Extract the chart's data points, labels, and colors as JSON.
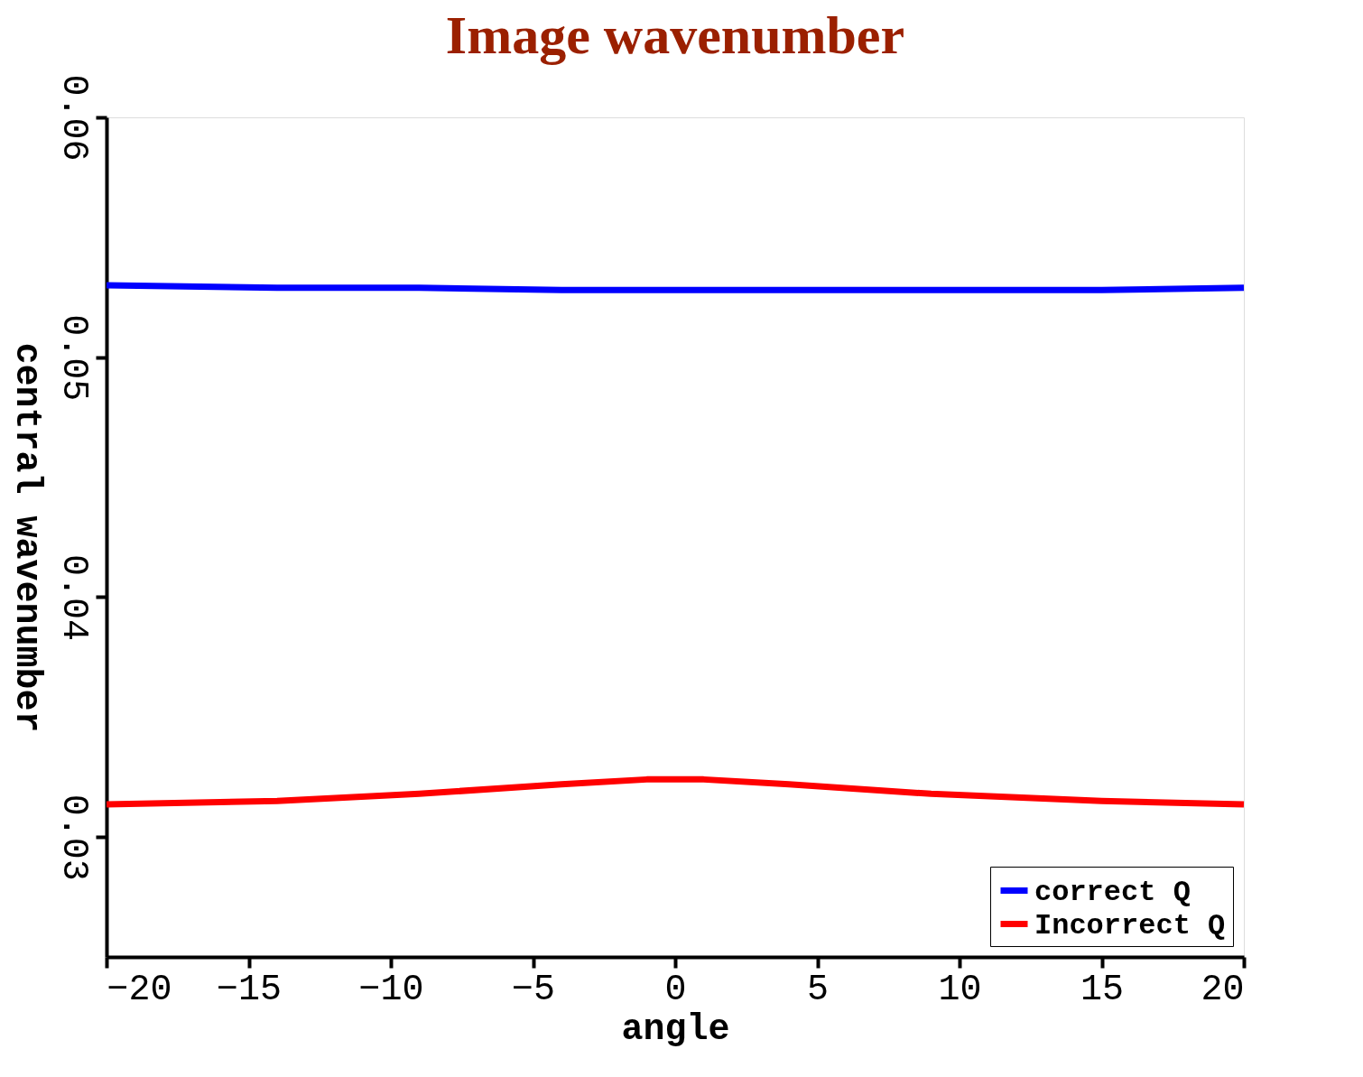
{
  "chart_data": {
    "type": "line",
    "title": "Image wavenumber",
    "xlabel": "angle",
    "ylabel": "central wavenumber",
    "xlim": [
      -20,
      20
    ],
    "xticks": [
      -20,
      -15,
      -10,
      -5,
      0,
      5,
      10,
      15,
      20
    ],
    "ylim": [
      0.025,
      0.06
    ],
    "yticks": [
      0.03,
      0.04,
      0.05,
      0.06
    ],
    "grid": false,
    "legend": "bottom right",
    "line_style": "solid",
    "series": [
      {
        "name": "correct Q",
        "color": "#0000ff",
        "x": [
          -20,
          -14,
          -9,
          -4,
          -1,
          1,
          4,
          9,
          15,
          20
        ],
        "values": [
          0.053,
          0.0529,
          0.0529,
          0.0528,
          0.0528,
          0.0528,
          0.0528,
          0.0528,
          0.0528,
          0.0529
        ]
      },
      {
        "name": "Incorrect Q",
        "color": "#ff0000",
        "x": [
          -20,
          -14,
          -9,
          -4,
          -1,
          1,
          4,
          9,
          15,
          20
        ],
        "values": [
          0.03136,
          0.0315,
          0.0318,
          0.0322,
          0.0324,
          0.0324,
          0.0322,
          0.0318,
          0.0315,
          0.03136
        ]
      }
    ]
  }
}
